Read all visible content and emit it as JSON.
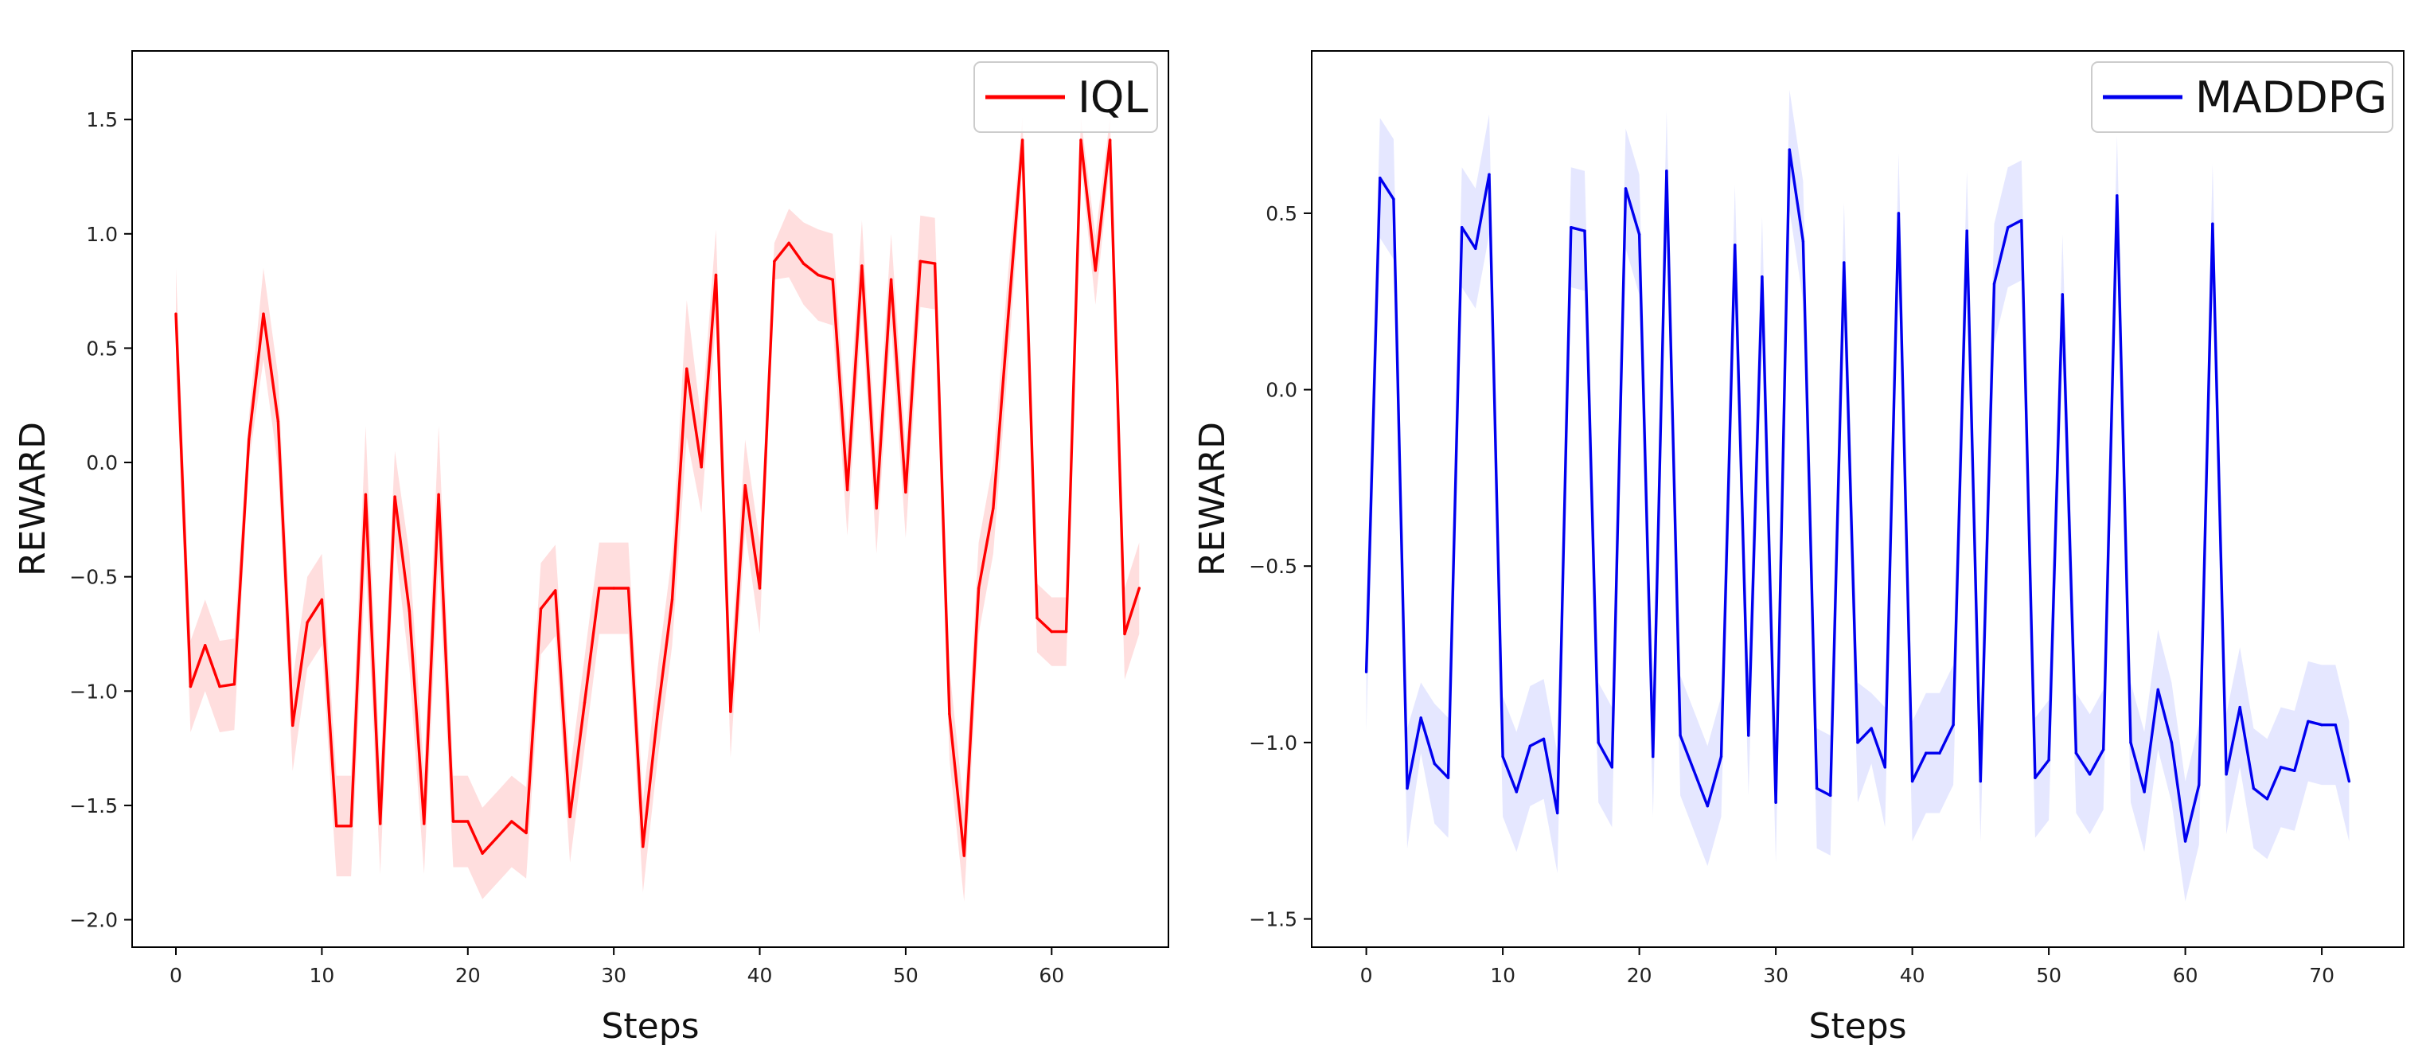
{
  "chart_data": [
    {
      "type": "line",
      "xlabel": "Steps",
      "ylabel": "REWARD",
      "xlim": [
        -3,
        68
      ],
      "ylim": [
        -2.12,
        1.8
      ],
      "xticks": [
        0,
        10,
        20,
        30,
        40,
        50,
        60
      ],
      "yticks": [
        -2.0,
        -1.5,
        -1.0,
        -0.5,
        0.0,
        0.5,
        1.0,
        1.5
      ],
      "ytick_labels": [
        "−2.0",
        "−1.5",
        "−1.0",
        "−0.5",
        "0.0",
        "0.5",
        "1.0",
        "1.5"
      ],
      "legend": "top-right",
      "series": [
        {
          "name": "IQL",
          "color": "#ff0000",
          "band_color": "#ff0000",
          "x": [
            0,
            1,
            2,
            3,
            4,
            5,
            6,
            7,
            8,
            9,
            10,
            11,
            12,
            13,
            14,
            15,
            16,
            17,
            18,
            19,
            20,
            21,
            22,
            23,
            24,
            25,
            26,
            27,
            28,
            29,
            30,
            31,
            32,
            33,
            34,
            35,
            36,
            37,
            38,
            39,
            40,
            41,
            42,
            43,
            44,
            45,
            46,
            47,
            48,
            49,
            50,
            51,
            52,
            53,
            54,
            55,
            56,
            57,
            58,
            59,
            60,
            61,
            62,
            63,
            64,
            65,
            66
          ],
          "values": [
            0.65,
            -0.98,
            -0.8,
            -0.98,
            -0.97,
            0.1,
            0.65,
            0.18,
            -1.15,
            -0.7,
            -0.6,
            -1.59,
            -1.59,
            -0.14,
            -1.58,
            -0.15,
            -0.65,
            -1.58,
            -0.14,
            -1.57,
            -1.57,
            -1.71,
            -1.64,
            -1.57,
            -1.62,
            -0.64,
            -0.56,
            -1.55,
            -1.05,
            -0.55,
            -0.55,
            -0.55,
            -1.68,
            -1.1,
            -0.6,
            0.41,
            -0.02,
            0.82,
            -1.09,
            -0.1,
            -0.55,
            0.88,
            0.96,
            0.87,
            0.82,
            0.8,
            -0.12,
            0.86,
            -0.2,
            0.8,
            -0.13,
            0.88,
            0.87,
            -1.1,
            -1.72,
            -0.55,
            -0.2,
            0.62,
            1.41,
            -0.68,
            -0.74,
            -0.74,
            1.41,
            0.84,
            1.41,
            -0.75,
            -0.55
          ],
          "band": [
            0.2,
            0.2,
            0.2,
            0.2,
            0.2,
            0.1,
            0.2,
            0.2,
            0.2,
            0.2,
            0.2,
            0.22,
            0.22,
            0.3,
            0.22,
            0.2,
            0.25,
            0.22,
            0.3,
            0.2,
            0.2,
            0.2,
            0.2,
            0.2,
            0.2,
            0.2,
            0.2,
            0.2,
            0.2,
            0.2,
            0.2,
            0.2,
            0.2,
            0.2,
            0.2,
            0.3,
            0.2,
            0.2,
            0.2,
            0.2,
            0.2,
            0.08,
            0.15,
            0.18,
            0.2,
            0.2,
            0.2,
            0.2,
            0.2,
            0.2,
            0.2,
            0.2,
            0.2,
            0.2,
            0.2,
            0.2,
            0.2,
            0.2,
            0.1,
            0.15,
            0.15,
            0.15,
            0.1,
            0.15,
            0.1,
            0.2,
            0.2
          ]
        }
      ]
    },
    {
      "type": "line",
      "xlabel": "Steps",
      "ylabel": "REWARD",
      "xlim": [
        -4,
        76
      ],
      "ylim": [
        -1.58,
        0.96
      ],
      "xticks": [
        0,
        10,
        20,
        30,
        40,
        50,
        60,
        70
      ],
      "yticks": [
        -1.5,
        -1.0,
        -0.5,
        0.0,
        0.5
      ],
      "ytick_labels": [
        "−1.5",
        "−1.0",
        "−0.5",
        "0.0",
        "0.5"
      ],
      "legend": "top-right",
      "series": [
        {
          "name": "MADDPG",
          "color": "#0000ee",
          "band_color": "#3344ff",
          "x": [
            0,
            1,
            2,
            3,
            4,
            5,
            6,
            7,
            8,
            9,
            10,
            11,
            12,
            13,
            14,
            15,
            16,
            17,
            18,
            19,
            20,
            21,
            22,
            23,
            24,
            25,
            26,
            27,
            28,
            29,
            30,
            31,
            32,
            33,
            34,
            35,
            36,
            37,
            38,
            39,
            40,
            41,
            42,
            43,
            44,
            45,
            46,
            47,
            48,
            49,
            50,
            51,
            52,
            53,
            54,
            55,
            56,
            57,
            58,
            59,
            60,
            61,
            62,
            63,
            64,
            65,
            66,
            67,
            68,
            69,
            70,
            71,
            72
          ],
          "values": [
            -0.8,
            0.6,
            0.54,
            -1.13,
            -0.93,
            -1.06,
            -1.1,
            0.46,
            0.4,
            0.61,
            -1.04,
            -1.14,
            -1.01,
            -0.99,
            -1.2,
            0.46,
            0.45,
            -1.0,
            -1.07,
            0.57,
            0.44,
            -1.04,
            0.62,
            -0.98,
            -1.08,
            -1.18,
            -1.04,
            0.41,
            -0.98,
            0.32,
            -1.17,
            0.68,
            0.42,
            -1.13,
            -1.15,
            0.36,
            -1.0,
            -0.96,
            -1.07,
            0.5,
            -1.11,
            -1.03,
            -1.03,
            -0.95,
            0.45,
            -1.11,
            0.3,
            0.46,
            0.48,
            -1.1,
            -1.05,
            0.27,
            -1.03,
            -1.09,
            -1.02,
            0.55,
            -1.0,
            -1.14,
            -0.85,
            -1.0,
            -1.28,
            -1.12,
            0.47,
            -1.09,
            -0.9,
            -1.13,
            -1.16,
            -1.07,
            -1.08,
            -0.94,
            -0.95,
            -0.95,
            -1.11
          ],
          "band": [
            0.17,
            0.17,
            0.17,
            0.17,
            0.1,
            0.17,
            0.17,
            0.17,
            0.17,
            0.17,
            0.17,
            0.17,
            0.17,
            0.17,
            0.17,
            0.17,
            0.17,
            0.17,
            0.17,
            0.17,
            0.17,
            0.17,
            0.17,
            0.17,
            0.17,
            0.17,
            0.17,
            0.17,
            0.17,
            0.17,
            0.17,
            0.17,
            0.17,
            0.17,
            0.17,
            0.17,
            0.17,
            0.1,
            0.17,
            0.17,
            0.17,
            0.17,
            0.17,
            0.17,
            0.17,
            0.17,
            0.17,
            0.17,
            0.17,
            0.17,
            0.17,
            0.17,
            0.17,
            0.17,
            0.17,
            0.17,
            0.17,
            0.17,
            0.17,
            0.17,
            0.17,
            0.17,
            0.17,
            0.17,
            0.17,
            0.17,
            0.17,
            0.17,
            0.17,
            0.17,
            0.17,
            0.17,
            0.17
          ]
        }
      ]
    }
  ]
}
